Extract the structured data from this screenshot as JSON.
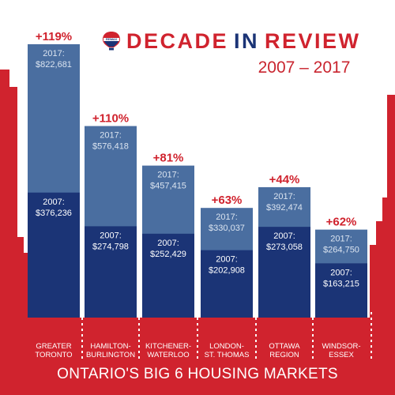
{
  "header": {
    "logo_text": "RE/MAX",
    "title_part1": "DECADE",
    "title_part2": "IN",
    "title_part3": "REVIEW",
    "subtitle": "2007 – 2017"
  },
  "footer": {
    "text": "ONTARIO'S BIG 6 HOUSING MARKETS"
  },
  "colors": {
    "red": "#d0232e",
    "navy": "#1b3476",
    "steel": "#4a6ea0",
    "white": "#ffffff"
  },
  "chart_data": {
    "type": "bar",
    "title": "DECADE IN REVIEW",
    "subtitle": "2007 – 2017",
    "categories": [
      [
        "GREATER",
        "TORONTO"
      ],
      [
        "HAMILTON-",
        "BURLINGTON"
      ],
      [
        "KITCHENER-",
        "WATERLOO"
      ],
      [
        "LONDON-",
        "ST. THOMAS"
      ],
      [
        "OTTAWA",
        "REGION"
      ],
      [
        "WINDSOR-",
        "ESSEX"
      ]
    ],
    "series": [
      {
        "name": "2007",
        "values": [
          376236,
          274798,
          252429,
          202908,
          273058,
          163215
        ],
        "labels": [
          "$376,236",
          "$274,798",
          "$252,429",
          "$202,908",
          "$273,058",
          "$163,215"
        ]
      },
      {
        "name": "2017",
        "values": [
          822681,
          576418,
          457415,
          330037,
          392474,
          264750
        ],
        "labels": [
          "$822,681",
          "$576,418",
          "$457,415",
          "$330,037",
          "$392,474",
          "$264,750"
        ]
      }
    ],
    "changes": [
      "+119%",
      "+110%",
      "+81%",
      "+63%",
      "+44%",
      "+62%"
    ],
    "ylim": [
      0,
      850000
    ],
    "grid": false,
    "legend": "none"
  }
}
